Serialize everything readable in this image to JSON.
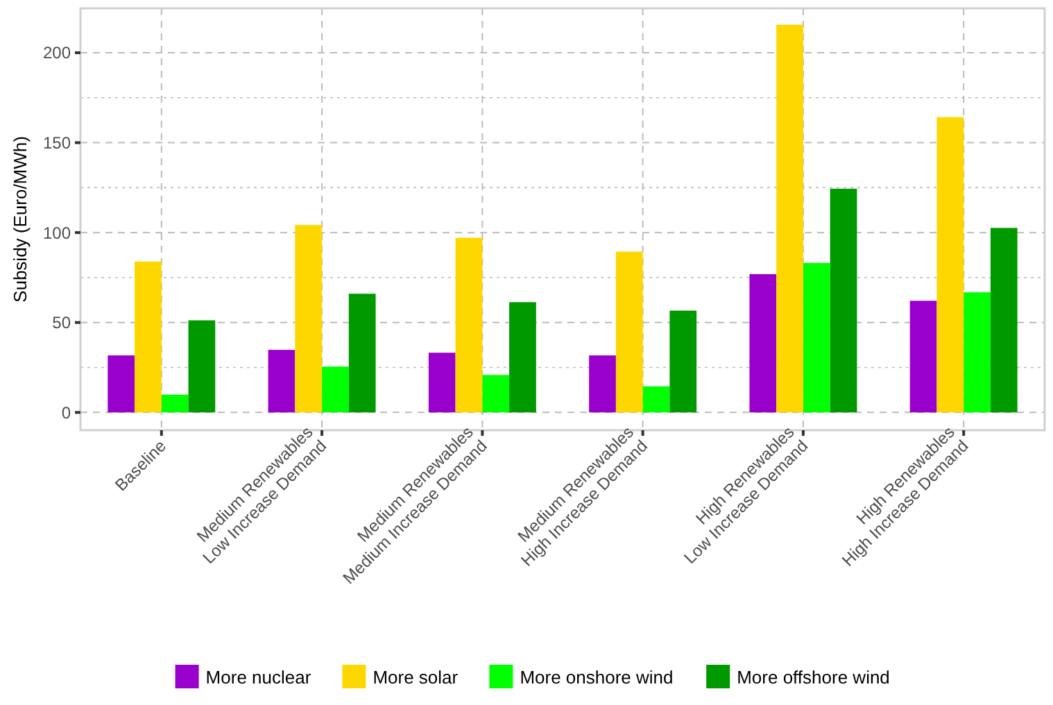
{
  "chart_data": {
    "type": "bar",
    "ylabel": "Subsidy (Euro/MWh)",
    "categories": [
      "Baseline",
      "Medium Renewables\nLow Increase Demand",
      "Medium Renewables\nMedium Increase Demand",
      "Medium Renewables\nHigh Increase Demand",
      "High Renewables\nLow Increase Demand",
      "High Renewables\nHigh Increase Demand"
    ],
    "series": [
      {
        "name": "More nuclear",
        "color": "#9900cc",
        "values": [
          31.7,
          34.8,
          33.2,
          31.7,
          76.9,
          62.1
        ]
      },
      {
        "name": "More solar",
        "color": "#ffd700",
        "values": [
          83.9,
          104.2,
          97.1,
          89.4,
          215.6,
          164.2
        ]
      },
      {
        "name": "More onshore wind",
        "color": "#00ff00",
        "values": [
          9.9,
          25.5,
          20.8,
          14.5,
          83.1,
          66.8
        ]
      },
      {
        "name": "More offshore wind",
        "color": "#009900",
        "values": [
          51.2,
          66,
          61.3,
          56.6,
          124.4,
          102.6
        ]
      }
    ],
    "ylim": [
      -9.9,
      224.7
    ],
    "yticks": [
      0,
      50,
      100,
      150,
      200
    ],
    "grid": true,
    "legend": "bottom"
  }
}
